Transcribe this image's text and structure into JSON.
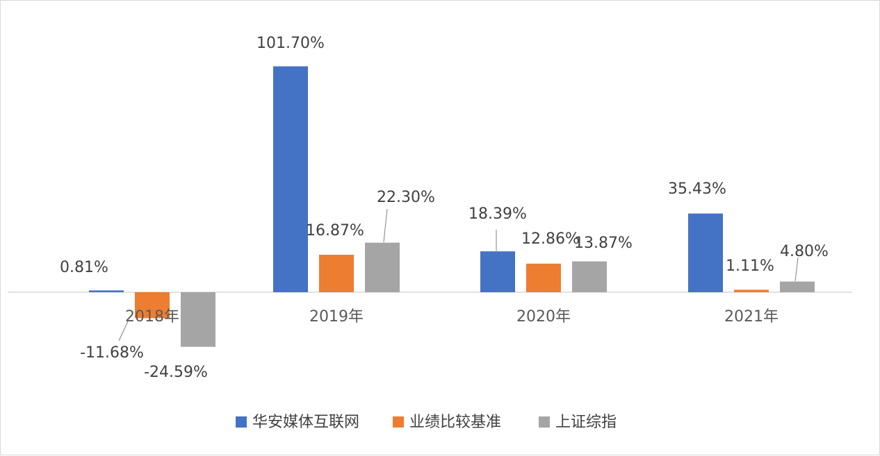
{
  "chart_data": {
    "type": "bar",
    "categories": [
      "2018年",
      "2019年",
      "2020年",
      "2021年"
    ],
    "series": [
      {
        "name": "华安媒体互联网",
        "color": "#4472c4",
        "values": [
          0.81,
          101.7,
          18.39,
          35.43
        ],
        "labels": [
          "0.81%",
          "101.70%",
          "18.39%",
          "35.43%"
        ]
      },
      {
        "name": "业绩比较基准",
        "color": "#ed7d31",
        "values": [
          -11.68,
          16.87,
          12.86,
          1.11
        ],
        "labels": [
          "-11.68%",
          "16.87%",
          "12.86%",
          "1.11%"
        ]
      },
      {
        "name": "上证综指",
        "color": "#a5a5a5",
        "values": [
          -24.59,
          22.3,
          13.87,
          4.8
        ],
        "labels": [
          "-24.59%",
          "22.30%",
          "13.87%",
          "4.80%"
        ]
      }
    ],
    "title": "",
    "xlabel": "",
    "ylabel": "",
    "grid": false,
    "legend_position": "bottom"
  }
}
